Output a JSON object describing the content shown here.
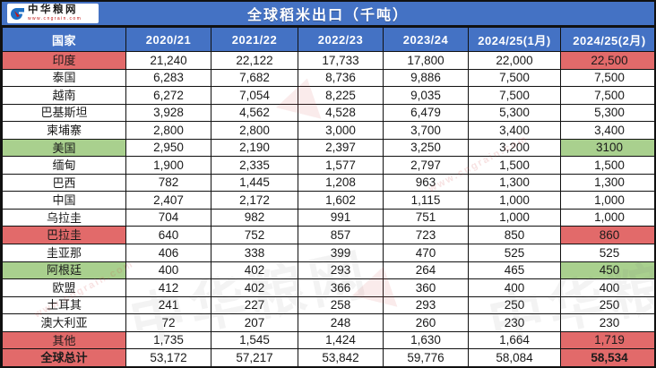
{
  "logo": {
    "name": "中华粮网",
    "url_text": "www.cngrain.com"
  },
  "title": "全球稻米出口（千吨）",
  "colors": {
    "header_blue": "#4472C4",
    "highlight_red": "#E26A6A",
    "highlight_green": "#A9D08E",
    "border": "#111111"
  },
  "watermarks": {
    "brand": "中华粮网",
    "url": "www.cngrain.com"
  },
  "chart_data": {
    "type": "table",
    "title": "全球稻米出口（千吨）",
    "columns": [
      "国家",
      "2020/21",
      "2021/22",
      "2022/23",
      "2023/24",
      "2024/25(1月)",
      "2024/25(2月)"
    ],
    "rows": [
      {
        "country": "印度",
        "values": [
          "21,240",
          "22,122",
          "17,733",
          "17,800",
          "22,000",
          "22,500"
        ],
        "highlight": "red"
      },
      {
        "country": "泰国",
        "values": [
          "6,283",
          "7,682",
          "8,736",
          "9,886",
          "7,500",
          "7,500"
        ],
        "highlight": null
      },
      {
        "country": "越南",
        "values": [
          "6,272",
          "7,054",
          "8,225",
          "9,035",
          "7,500",
          "7,500"
        ],
        "highlight": null
      },
      {
        "country": "巴基斯坦",
        "values": [
          "3,928",
          "4,562",
          "4,528",
          "6,479",
          "5,300",
          "5,300"
        ],
        "highlight": null
      },
      {
        "country": "柬埔寨",
        "values": [
          "2,800",
          "2,800",
          "3,000",
          "3,700",
          "3,400",
          "3,400"
        ],
        "highlight": null
      },
      {
        "country": "美国",
        "values": [
          "2,950",
          "2,190",
          "2,397",
          "3,250",
          "3,200",
          "3100"
        ],
        "highlight": "green"
      },
      {
        "country": "缅甸",
        "values": [
          "1,900",
          "2,335",
          "1,577",
          "2,797",
          "1,500",
          "1,500"
        ],
        "highlight": null
      },
      {
        "country": "巴西",
        "values": [
          "782",
          "1,445",
          "1,208",
          "963",
          "1,300",
          "1,300"
        ],
        "highlight": null
      },
      {
        "country": "中国",
        "values": [
          "2,407",
          "2,172",
          "1,602",
          "1,115",
          "1,000",
          "1,000"
        ],
        "highlight": null
      },
      {
        "country": "乌拉圭",
        "values": [
          "704",
          "982",
          "991",
          "751",
          "1,000",
          "1,000"
        ],
        "highlight": null
      },
      {
        "country": "巴拉圭",
        "values": [
          "640",
          "752",
          "857",
          "723",
          "850",
          "860"
        ],
        "highlight": "red"
      },
      {
        "country": "圭亚那",
        "values": [
          "406",
          "338",
          "399",
          "470",
          "525",
          "525"
        ],
        "highlight": null
      },
      {
        "country": "阿根廷",
        "values": [
          "400",
          "402",
          "293",
          "264",
          "465",
          "450"
        ],
        "highlight": "green"
      },
      {
        "country": "欧盟",
        "values": [
          "412",
          "402",
          "366",
          "360",
          "400",
          "400"
        ],
        "highlight": null
      },
      {
        "country": "土耳其",
        "values": [
          "241",
          "227",
          "258",
          "293",
          "250",
          "250"
        ],
        "highlight": null
      },
      {
        "country": "澳大利亚",
        "values": [
          "72",
          "207",
          "248",
          "260",
          "230",
          "230"
        ],
        "highlight": null
      },
      {
        "country": "其他",
        "values": [
          "1,735",
          "1,545",
          "1,424",
          "1,630",
          "1,664",
          "1,719"
        ],
        "highlight": "red"
      },
      {
        "country": "全球总计",
        "values": [
          "53,172",
          "57,217",
          "53,842",
          "59,776",
          "58,084",
          "58,534"
        ],
        "highlight": "red",
        "bold": true
      }
    ]
  }
}
